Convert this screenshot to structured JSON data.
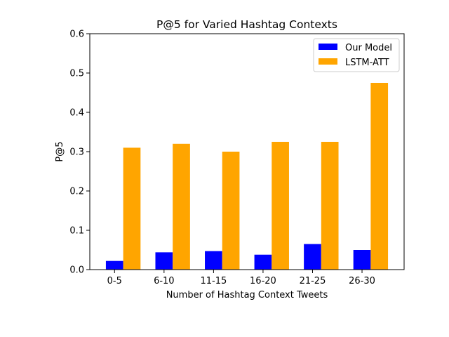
{
  "chart_data": {
    "type": "bar",
    "title": "P@5 for Varied Hashtag Contexts",
    "xlabel": "Number of Hashtag Context Tweets",
    "ylabel": "P@5",
    "categories": [
      "0-5",
      "6-10",
      "11-15",
      "16-20",
      "21-25",
      "26-30"
    ],
    "series": [
      {
        "name": "Our Model",
        "color": "#0000ff",
        "values": [
          0.022,
          0.044,
          0.047,
          0.038,
          0.065,
          0.05
        ]
      },
      {
        "name": "LSTM-ATT",
        "color": "#ffa500",
        "values": [
          0.31,
          0.32,
          0.3,
          0.325,
          0.325,
          0.475
        ]
      }
    ],
    "ylim": [
      0,
      0.6
    ],
    "yticks": [
      "0.0",
      "0.1",
      "0.2",
      "0.3",
      "0.4",
      "0.5",
      "0.6"
    ],
    "grid": false,
    "legend_position": "top-right"
  }
}
